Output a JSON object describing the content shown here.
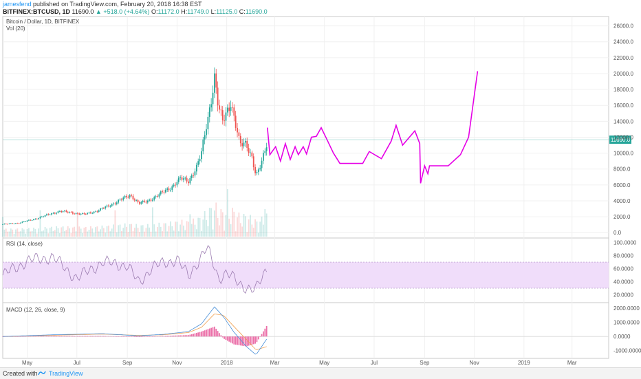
{
  "header": {
    "author": "jamesfend",
    "published_text": " published on TradingView.com, February 20, 2018 16:38 EST",
    "symbol": "BITFINEX:BTCUSD, 1D",
    "last": "11690.0",
    "change_arrow": "▲",
    "change": "+518.0 (+4.64%)",
    "o_label": "O:",
    "o": "11172.0",
    "h_label": "H:",
    "h": "11749.0",
    "l_label": "L:",
    "l": "11125.0",
    "c_label": "C:",
    "c": "11690.0"
  },
  "panes": {
    "main_title": "Bitcoin / Dollar, 1D, BITFINEX",
    "vol_label": "Vol (20)",
    "rsi_label": "RSI (14, close)",
    "macd_label": "MACD (12, 26, close, 9)"
  },
  "price_axis": {
    "ticks": [
      "26000.0",
      "24000.0",
      "22000.0",
      "20000.0",
      "18000.0",
      "16000.0",
      "14000.0",
      "12000.0",
      "10000.0",
      "8000.0",
      "6000.0",
      "4000.0",
      "2000.0",
      "0.0"
    ],
    "current_price_label": "11690.0"
  },
  "rsi_axis": {
    "ticks": [
      "100.0000",
      "80.0000",
      "60.0000",
      "40.0000",
      "20.0000"
    ]
  },
  "macd_axis": {
    "ticks": [
      "2000.0000",
      "1000.0000",
      "0.0000",
      "-1000.0000"
    ]
  },
  "time_axis": {
    "labels": [
      "May",
      "Jul",
      "Sep",
      "Nov",
      "2018",
      "Mar",
      "May",
      "Jul",
      "Sep",
      "Nov",
      "2019",
      "Mar"
    ]
  },
  "footer": {
    "created_with": "Created with",
    "brand": "TradingView"
  },
  "colors": {
    "up": "#26a69a",
    "down": "#ef5350",
    "projection": "#e600e6",
    "rsi_band": "#f0ddfa",
    "rsi_line": "#9b7bb0",
    "macd_line": "#4a90d9",
    "signal_line": "#f0a050",
    "histogram": "#e8589a",
    "current_price": "#26a69a"
  },
  "chart_data": [
    {
      "type": "line",
      "title": "Bitcoin / Dollar, 1D, BITFINEX",
      "ylim": [
        -500,
        27000
      ],
      "x_range": [
        "2017-04-01",
        "2019-04-15"
      ],
      "series": [
        {
          "kind": "candlestick-approx",
          "x": [
            "2017-04-01",
            "2017-04-20",
            "2017-05-10",
            "2017-05-25",
            "2017-06-10",
            "2017-06-25",
            "2017-07-10",
            "2017-07-25",
            "2017-08-10",
            "2017-08-25",
            "2017-09-05",
            "2017-09-15",
            "2017-09-25",
            "2017-10-10",
            "2017-10-25",
            "2017-11-05",
            "2017-11-15",
            "2017-11-25",
            "2017-12-01",
            "2017-12-07",
            "2017-12-10",
            "2017-12-17",
            "2017-12-22",
            "2017-12-27",
            "2018-01-06",
            "2018-01-12",
            "2018-01-17",
            "2018-01-25",
            "2018-02-01",
            "2018-02-06",
            "2018-02-12",
            "2018-02-20"
          ],
          "values": [
            1050,
            1200,
            1700,
            2200,
            2700,
            2500,
            2300,
            2700,
            3400,
            4200,
            4700,
            3700,
            3900,
            4800,
            5700,
            6800,
            6500,
            8200,
            10000,
            13500,
            15000,
            19500,
            15500,
            14000,
            16500,
            13500,
            11000,
            11300,
            9500,
            7000,
            8500,
            11690
          ]
        },
        {
          "name": "",
          "kind": "projection",
          "x": [
            "2018-02-20",
            "2018-02-23",
            "2018-03-02",
            "2018-03-08",
            "2018-03-14",
            "2018-03-20",
            "2018-03-26",
            "2018-03-30",
            "2018-04-05",
            "2018-04-09",
            "2018-04-15",
            "2018-04-21",
            "2018-04-27",
            "2018-05-05",
            "2018-05-12",
            "2018-05-20",
            "2018-06-17",
            "2018-06-25",
            "2018-07-10",
            "2018-07-22",
            "2018-07-28",
            "2018-08-05",
            "2018-08-20",
            "2018-08-26",
            "2018-08-27",
            "2018-09-01",
            "2018-09-05",
            "2018-09-07",
            "2018-09-30",
            "2018-10-15",
            "2018-10-25",
            "2018-11-05"
          ],
          "values": [
            13200,
            9800,
            10800,
            9000,
            11200,
            9200,
            10800,
            9800,
            10800,
            9900,
            12000,
            12100,
            13200,
            11500,
            10000,
            8700,
            8700,
            10200,
            9300,
            11500,
            13500,
            11000,
            12800,
            11200,
            6200,
            8400,
            7400,
            8400,
            8400,
            9800,
            12000,
            20300
          ]
        }
      ],
      "current_price": 11690
    },
    {
      "type": "line",
      "title": "RSI (14, close)",
      "ylim": [
        10,
        105
      ],
      "bands": [
        30,
        70
      ],
      "series": [
        {
          "x": [
            "2017-04-01",
            "2017-05-01",
            "2017-06-01",
            "2017-07-01",
            "2017-08-01",
            "2017-09-01",
            "2017-09-15",
            "2017-10-01",
            "2017-11-01",
            "2017-11-15",
            "2017-12-01",
            "2017-12-08",
            "2017-12-22",
            "2018-01-01",
            "2018-01-17",
            "2018-02-06",
            "2018-02-20"
          ],
          "values": [
            50,
            72,
            78,
            45,
            70,
            65,
            38,
            62,
            75,
            48,
            80,
            92,
            45,
            55,
            35,
            28,
            60
          ]
        }
      ]
    },
    {
      "type": "line",
      "title": "MACD (12, 26, close, 9)",
      "ylim": [
        -1500,
        2300
      ],
      "series": [
        {
          "x": [
            "2017-04-01",
            "2017-06-01",
            "2017-08-01",
            "2017-09-15",
            "2017-10-15",
            "2017-11-15",
            "2017-12-01",
            "2017-12-17",
            "2017-12-28",
            "2018-01-10",
            "2018-01-25",
            "2018-02-06",
            "2018-02-20"
          ],
          "values": [
            0,
            120,
            200,
            50,
            150,
            350,
            900,
            2100,
            1400,
            300,
            -700,
            -1300,
            -100
          ]
        },
        {
          "x": [
            "2017-04-01",
            "2017-06-01",
            "2017-08-01",
            "2017-09-15",
            "2017-10-15",
            "2017-11-15",
            "2017-12-01",
            "2017-12-17",
            "2017-12-28",
            "2018-01-10",
            "2018-01-25",
            "2018-02-06",
            "2018-02-20"
          ],
          "values": [
            0,
            90,
            170,
            80,
            120,
            280,
            650,
            1600,
            1500,
            700,
            -200,
            -950,
            -700
          ]
        }
      ]
    }
  ]
}
